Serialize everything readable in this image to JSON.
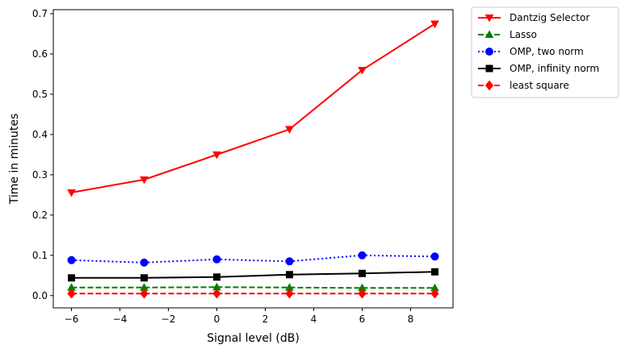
{
  "chart_data": {
    "type": "line",
    "xlabel": "Signal level (dB)",
    "ylabel": "Time in minutes",
    "x": [
      -6,
      -3,
      0,
      3,
      6,
      9
    ],
    "xlim": [
      -6.75,
      9.75
    ],
    "ylim": [
      -0.0305,
      0.71
    ],
    "xticks": [
      -6,
      -4,
      -2,
      0,
      2,
      4,
      6,
      8
    ],
    "xtick_labels": [
      "−6",
      "−4",
      "−2",
      "0",
      "2",
      "4",
      "6",
      "8"
    ],
    "yticks": [
      0.0,
      0.1,
      0.2,
      0.3,
      0.4,
      0.5,
      0.6,
      0.7
    ],
    "ytick_labels": [
      "0.0",
      "0.1",
      "0.2",
      "0.3",
      "0.4",
      "0.5",
      "0.6",
      "0.7"
    ],
    "grid": false,
    "legend_position": "outside-upper-right",
    "series": [
      {
        "name": "Dantzig Selector",
        "values": [
          0.256,
          0.288,
          0.35,
          0.413,
          0.56,
          0.675
        ],
        "color": "#ff0000",
        "linestyle": "solid",
        "marker": "triangle-down"
      },
      {
        "name": "Lasso",
        "values": [
          0.02,
          0.02,
          0.021,
          0.02,
          0.019,
          0.019
        ],
        "color": "#008000",
        "linestyle": "dashed",
        "marker": "triangle-up"
      },
      {
        "name": "OMP, two norm",
        "values": [
          0.088,
          0.082,
          0.09,
          0.085,
          0.1,
          0.097
        ],
        "color": "#0000ff",
        "linestyle": "dotted",
        "marker": "circle"
      },
      {
        "name": "OMP, infinity norm",
        "values": [
          0.044,
          0.044,
          0.046,
          0.052,
          0.055,
          0.059
        ],
        "color": "#000000",
        "linestyle": "solid",
        "marker": "square"
      },
      {
        "name": "least square",
        "values": [
          0.005,
          0.005,
          0.005,
          0.005,
          0.005,
          0.005
        ],
        "color": "#ff0000",
        "linestyle": "dashed",
        "marker": "diamond"
      }
    ]
  }
}
